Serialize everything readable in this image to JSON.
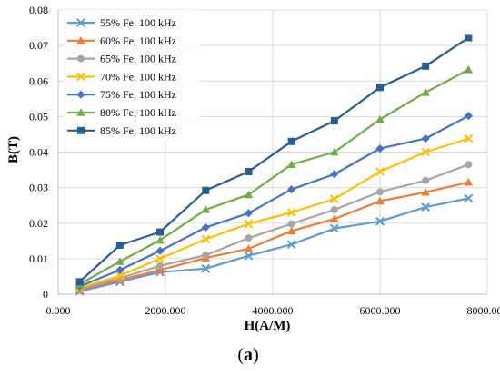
{
  "chart_data": {
    "type": "line",
    "xlabel": "H(A/M)",
    "ylabel": "B(T)",
    "xlim": [
      0,
      8000
    ],
    "ylim": [
      0,
      0.08
    ],
    "x_ticks": [
      "0.000",
      "2000.000",
      "4000.000",
      "6000.000",
      "8000.000"
    ],
    "y_ticks": [
      "0",
      "0.01",
      "0.02",
      "0.03",
      "0.04",
      "0.05",
      "0.06",
      "0.07",
      "0.08"
    ],
    "grid": "both",
    "legend": "top-left",
    "series": [
      {
        "name": "55% Fe, 100 kHz",
        "color": "#5b9bd5",
        "marker": "x",
        "x": [
          400,
          1150,
          1900,
          2750,
          3550,
          4350,
          5150,
          6000,
          6850,
          7650
        ],
        "y": [
          0.0008,
          0.0035,
          0.0062,
          0.0072,
          0.0108,
          0.014,
          0.0185,
          0.0205,
          0.0245,
          0.027
        ]
      },
      {
        "name": "60% Fe, 100 kHz",
        "color": "#ed7d31",
        "marker": "triangle",
        "x": [
          400,
          1150,
          1900,
          2750,
          3550,
          4350,
          5150,
          6000,
          6850,
          7650
        ],
        "y": [
          0.0012,
          0.004,
          0.0068,
          0.0102,
          0.0128,
          0.0178,
          0.0212,
          0.0262,
          0.0287,
          0.0315
        ]
      },
      {
        "name": "65% Fe, 100 kHz",
        "color": "#a5a5a5",
        "marker": "circle",
        "x": [
          400,
          1150,
          1900,
          2750,
          3550,
          4350,
          5150,
          6000,
          6850,
          7650
        ],
        "y": [
          0.0015,
          0.0045,
          0.008,
          0.011,
          0.0158,
          0.0198,
          0.0238,
          0.0288,
          0.032,
          0.0365
        ]
      },
      {
        "name": "70% Fe, 100 kHz",
        "color": "#ffc000",
        "marker": "x",
        "x": [
          400,
          1150,
          1900,
          2750,
          3550,
          4350,
          5150,
          6000,
          6850,
          7650
        ],
        "y": [
          0.0018,
          0.0052,
          0.01,
          0.0155,
          0.0198,
          0.023,
          0.0268,
          0.0345,
          0.04,
          0.0438
        ]
      },
      {
        "name": "75% Fe, 100 kHz",
        "color": "#4472c4",
        "marker": "diamond",
        "x": [
          400,
          1150,
          1900,
          2750,
          3550,
          4350,
          5150,
          6000,
          6850,
          7650
        ],
        "y": [
          0.0022,
          0.0068,
          0.0122,
          0.0188,
          0.0228,
          0.0295,
          0.0338,
          0.041,
          0.0438,
          0.0502
        ]
      },
      {
        "name": "80% Fe, 100 kHz",
        "color": "#70ad47",
        "marker": "triangle",
        "x": [
          400,
          1150,
          1900,
          2750,
          3550,
          4350,
          5150,
          6000,
          6850,
          7650
        ],
        "y": [
          0.0028,
          0.0092,
          0.0152,
          0.0238,
          0.028,
          0.0365,
          0.04,
          0.0492,
          0.0568,
          0.0632
        ]
      },
      {
        "name": "85% Fe, 100 kHz",
        "color": "#255e91",
        "marker": "square",
        "x": [
          400,
          1150,
          1900,
          2750,
          3550,
          4350,
          5150,
          6000,
          6850,
          7650
        ],
        "y": [
          0.0035,
          0.0138,
          0.0175,
          0.0292,
          0.0345,
          0.043,
          0.0488,
          0.0582,
          0.0642,
          0.0722
        ]
      }
    ]
  },
  "panel_label": {
    "open": "(",
    "letter": "a",
    "close": ")"
  }
}
